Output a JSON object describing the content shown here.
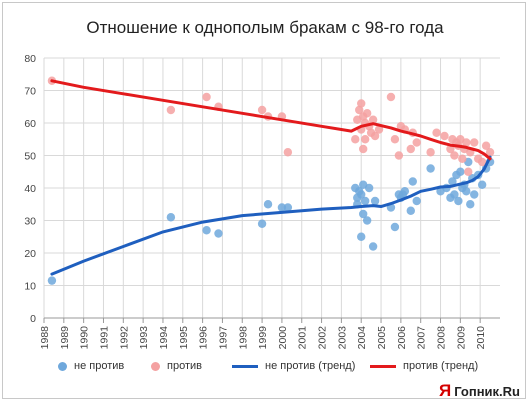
{
  "chart_data": {
    "type": "scatter",
    "title": "Отношение к однополым бракам с 98-го года",
    "ylim": [
      0,
      80
    ],
    "yticks": [
      0,
      10,
      20,
      30,
      40,
      50,
      60,
      70,
      80
    ],
    "xlim": [
      1988,
      2011
    ],
    "xticks": [
      1988,
      1989,
      1990,
      1991,
      1992,
      1993,
      1994,
      1995,
      1996,
      1997,
      1998,
      1999,
      2000,
      2001,
      2002,
      2003,
      2004,
      2005,
      2006,
      2007,
      2008,
      2009,
      2010
    ],
    "grid": true,
    "legend_position": "bottom",
    "series": [
      {
        "name": "не против",
        "kind": "points",
        "color": "#6fa8dc",
        "x": [
          1988.4,
          1994.4,
          1996.2,
          1996.8,
          1999.0,
          1999.3,
          2000.0,
          2000.3,
          2003.7,
          2003.8,
          2003.8,
          2003.9,
          2004.0,
          2004.0,
          2004.1,
          2004.1,
          2004.2,
          2004.3,
          2004.4,
          2004.6,
          2004.7,
          2005.5,
          2005.7,
          2005.9,
          2006.0,
          2006.1,
          2006.2,
          2006.5,
          2006.6,
          2006.8,
          2007.5,
          2008.0,
          2008.3,
          2008.5,
          2008.6,
          2008.7,
          2008.8,
          2008.9,
          2009.0,
          2009.1,
          2009.2,
          2009.3,
          2009.4,
          2009.5,
          2009.6,
          2009.7,
          2009.9,
          2010.1,
          2010.3,
          2010.5
        ],
        "y": [
          11.5,
          31,
          27,
          26,
          29,
          35,
          34,
          34,
          40,
          37,
          35,
          39,
          38,
          25,
          41,
          32,
          36,
          30,
          40,
          22,
          36,
          34,
          28,
          38,
          37,
          38,
          39,
          33,
          42,
          36,
          46,
          39,
          40,
          37,
          42,
          38,
          44,
          36,
          45,
          40,
          41,
          39,
          48,
          35,
          43,
          38,
          44,
          41,
          46,
          48
        ]
      },
      {
        "name": "против",
        "kind": "points",
        "color": "#f4a1a1",
        "x": [
          1988.4,
          1994.4,
          1996.2,
          1996.8,
          1999.0,
          1999.3,
          2000.0,
          2000.3,
          2003.7,
          2003.8,
          2003.9,
          2004.0,
          2004.0,
          2004.1,
          2004.1,
          2004.2,
          2004.2,
          2004.3,
          2004.4,
          2004.5,
          2004.6,
          2004.7,
          2004.9,
          2005.5,
          2005.7,
          2005.9,
          2006.0,
          2006.2,
          2006.5,
          2006.6,
          2006.8,
          2007.5,
          2007.8,
          2008.2,
          2008.5,
          2008.6,
          2008.7,
          2008.8,
          2008.9,
          2009.0,
          2009.1,
          2009.2,
          2009.3,
          2009.4,
          2009.5,
          2009.7,
          2009.9,
          2010.1,
          2010.3,
          2010.5
        ],
        "y": [
          73,
          64,
          68,
          65,
          64,
          62,
          62,
          51,
          55,
          61,
          64,
          58,
          66,
          52,
          62,
          60,
          55,
          63,
          59,
          57,
          61,
          56,
          58,
          68,
          55,
          50,
          59,
          58,
          52,
          57,
          54,
          51,
          57,
          56,
          52,
          55,
          50,
          54,
          53,
          55,
          49,
          52,
          54,
          45,
          51,
          54,
          49,
          48,
          53,
          51
        ]
      },
      {
        "name": "не против (тренд)",
        "kind": "line",
        "color": "#1f5fbf",
        "x": [
          1988.4,
          1990,
          1992,
          1994,
          1996,
          1998,
          2000,
          2002,
          2003.5,
          2004,
          2004.6,
          2005.0,
          2005.5,
          2006,
          2006.5,
          2007,
          2007.5,
          2008,
          2008.5,
          2009,
          2009.3,
          2009.6,
          2009.9,
          2010.2,
          2010.5
        ],
        "y": [
          13.5,
          17.5,
          22,
          26.5,
          29.5,
          31.5,
          32.5,
          33.5,
          34,
          34.3,
          34.6,
          34.3,
          35.2,
          36.3,
          37.5,
          39,
          39.6,
          40.3,
          40.5,
          41.2,
          41.6,
          42.3,
          43.5,
          45.8,
          49.5
        ]
      },
      {
        "name": "против (тренд)",
        "kind": "line",
        "color": "#e31a1c",
        "x": [
          1988.4,
          1990,
          1992,
          1994,
          1996,
          1998,
          2000,
          2002,
          2003.5,
          2004,
          2004.6,
          2005.0,
          2005.5,
          2006,
          2006.5,
          2007,
          2007.5,
          2008,
          2008.5,
          2009,
          2009.3,
          2009.6,
          2009.9,
          2010.2,
          2010.5
        ],
        "y": [
          73,
          71,
          69,
          67,
          65,
          63,
          61,
          59,
          57.5,
          59,
          59.8,
          59.2,
          58.5,
          57.5,
          56.8,
          56,
          55,
          54,
          53.2,
          52.8,
          52.5,
          52,
          51.5,
          50.5,
          49
        ]
      }
    ]
  },
  "legend": [
    {
      "label": "не против",
      "kind": "dot",
      "color": "#6fa8dc"
    },
    {
      "label": "против",
      "kind": "dot",
      "color": "#f4a1a1"
    },
    {
      "label": "не против (тренд)",
      "kind": "line",
      "color": "#1f5fbf"
    },
    {
      "label": "против (тренд)",
      "kind": "line",
      "color": "#e31a1c"
    }
  ],
  "watermark": {
    "mark": "Я",
    "text": "Гопник.Ru"
  }
}
